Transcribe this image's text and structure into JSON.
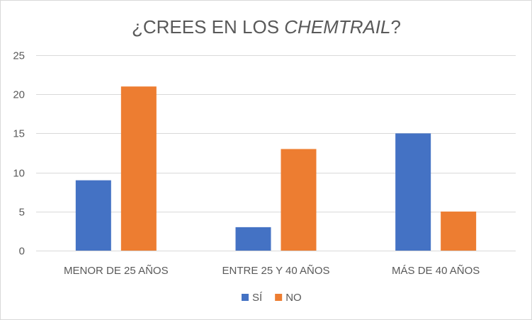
{
  "chart_data": {
    "type": "bar",
    "title_prefix": "¿CREES EN LOS ",
    "title_emphasis": "CHEMTRAIL",
    "title_suffix": "?",
    "categories": [
      "MENOR DE 25 AÑOS",
      "ENTRE 25 Y 40 AÑOS",
      "MÁS DE 40 AÑOS"
    ],
    "series": [
      {
        "name": "SÍ",
        "values": [
          9,
          3,
          15
        ],
        "color": "#4472C4"
      },
      {
        "name": "NO",
        "values": [
          21,
          13,
          5
        ],
        "color": "#ED7D31"
      }
    ],
    "ylim": [
      0,
      25
    ],
    "yticks": [
      0,
      5,
      10,
      15,
      20,
      25
    ],
    "grid": true,
    "legend_position": "bottom"
  }
}
